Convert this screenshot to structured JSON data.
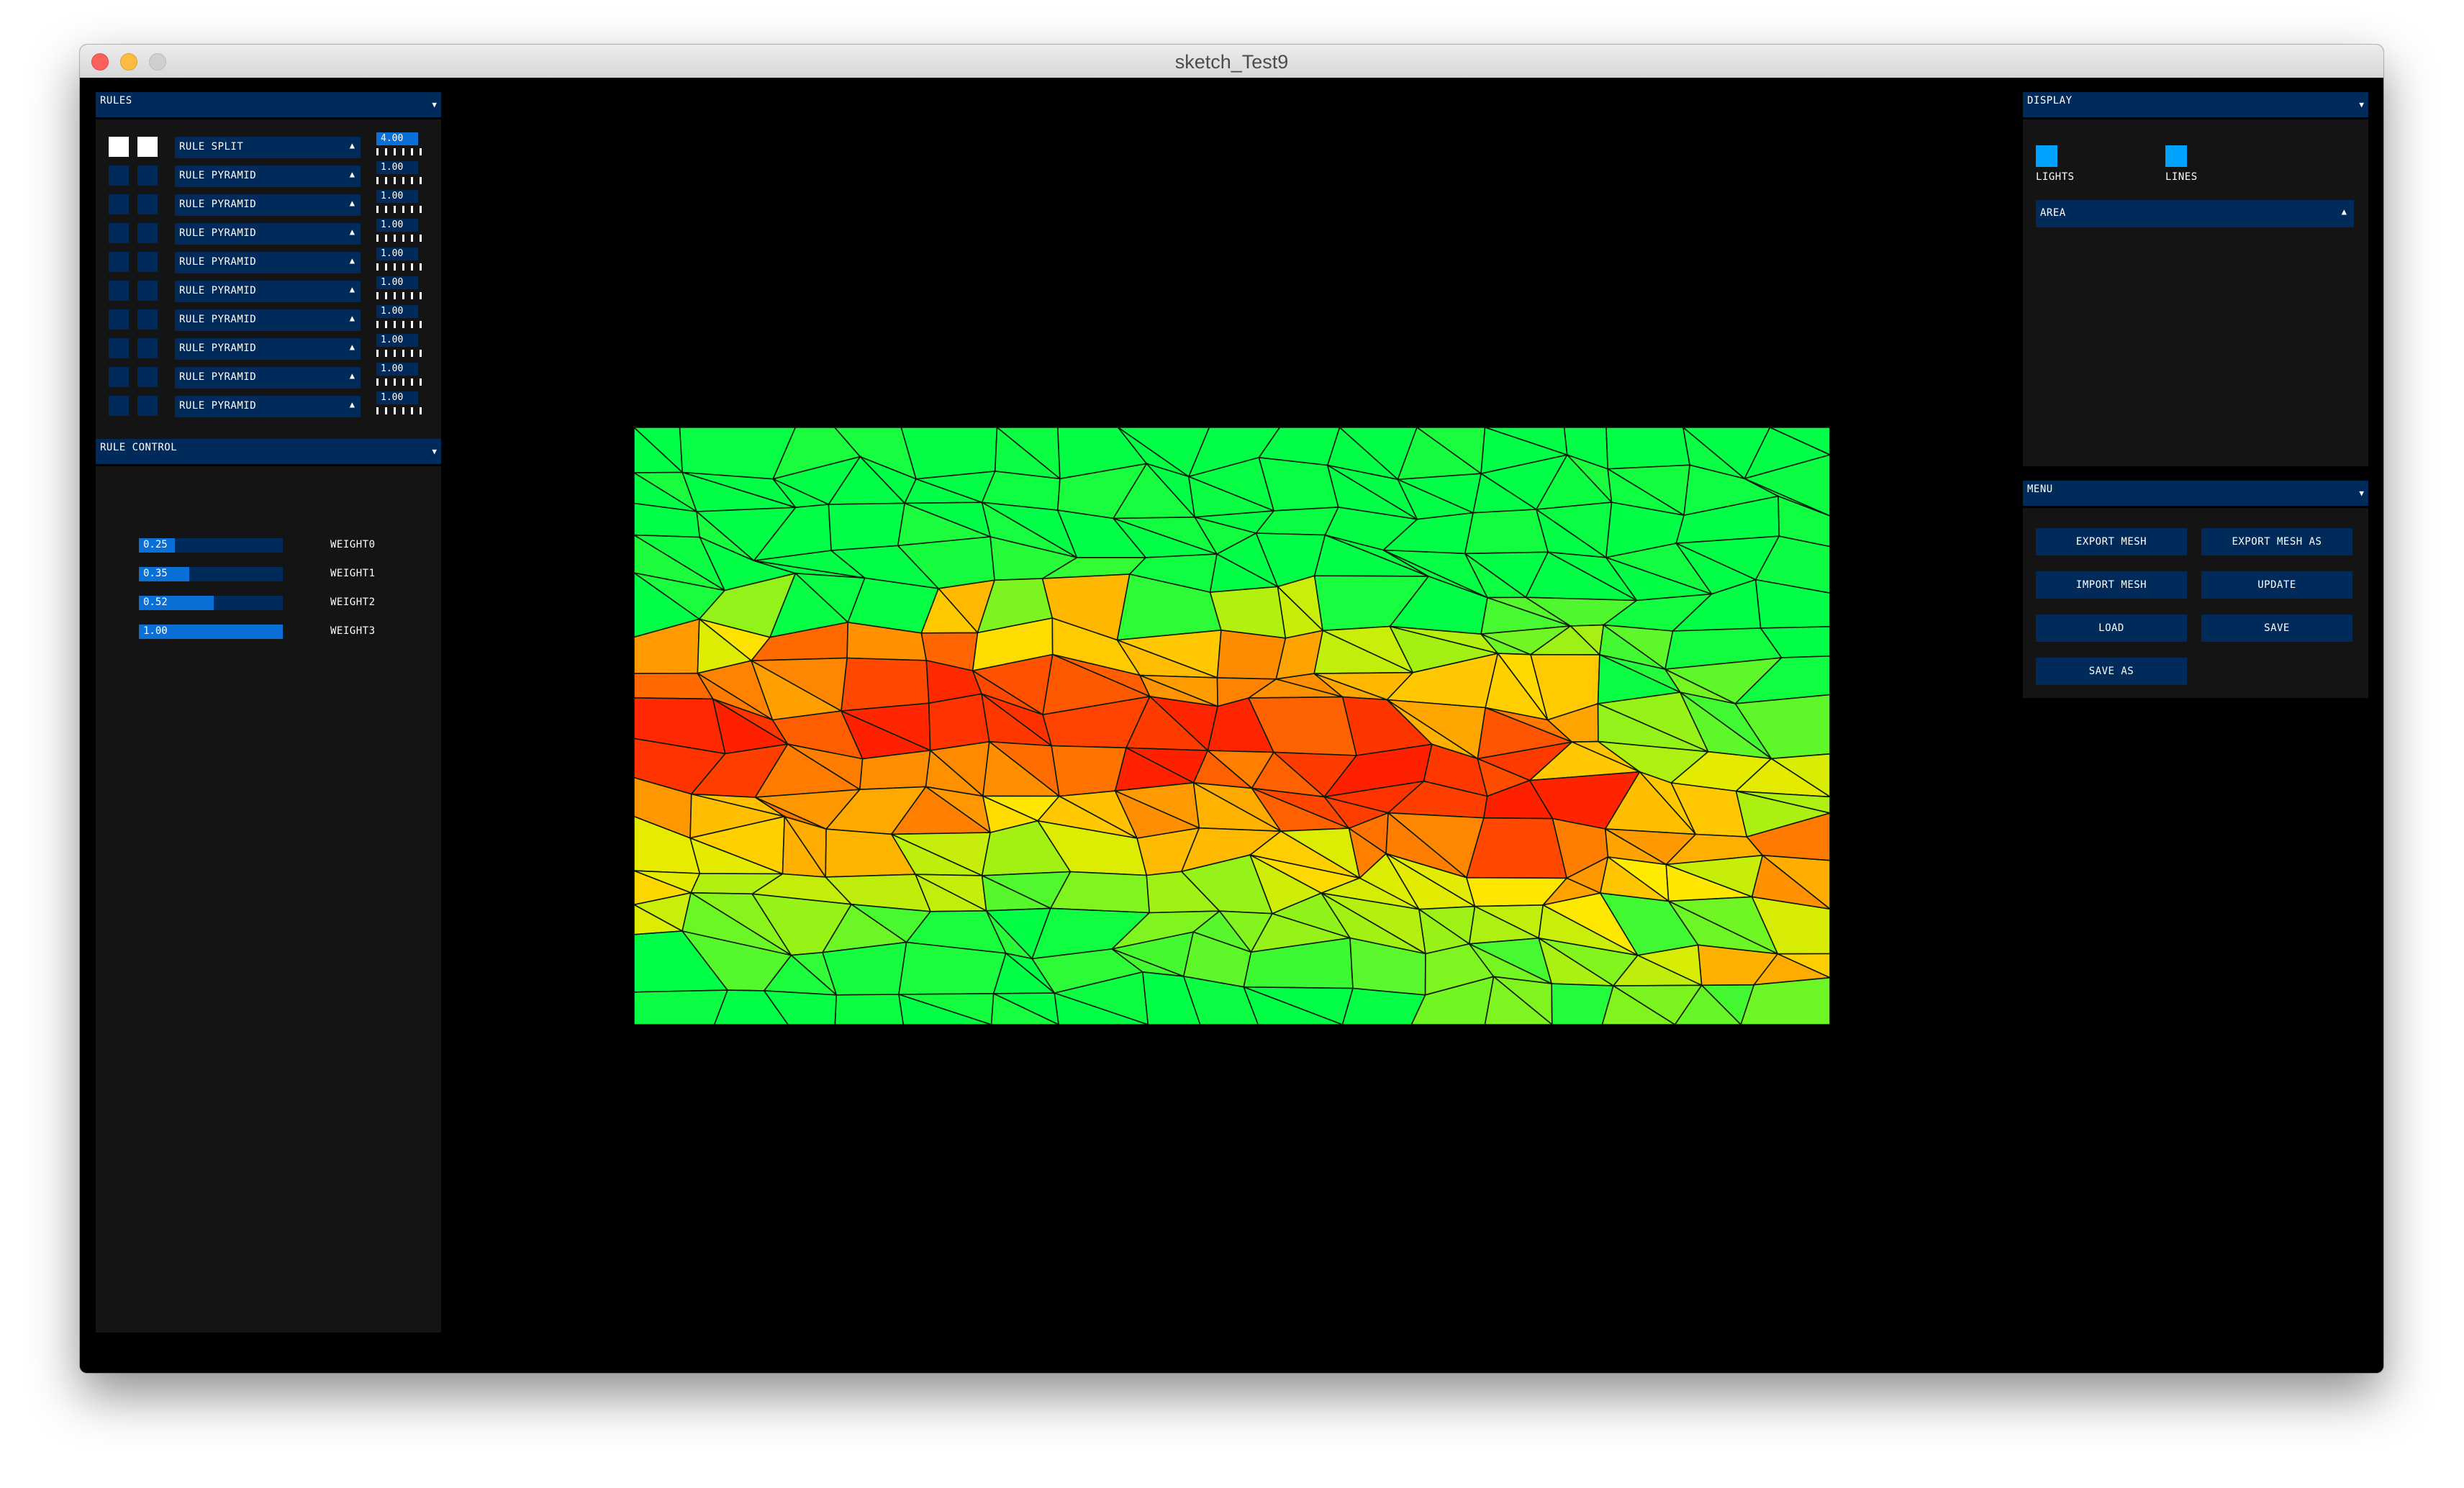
{
  "window": {
    "title": "sketch_Test9"
  },
  "rules_panel": {
    "title": "RULES",
    "rules": [
      {
        "label": "RULE SPLIT",
        "value": "4.00",
        "enabled_a": true,
        "enabled_b": true,
        "active": true
      },
      {
        "label": "RULE PYRAMID",
        "value": "1.00",
        "enabled_a": false,
        "enabled_b": false,
        "active": false
      },
      {
        "label": "RULE PYRAMID",
        "value": "1.00",
        "enabled_a": false,
        "enabled_b": false,
        "active": false
      },
      {
        "label": "RULE PYRAMID",
        "value": "1.00",
        "enabled_a": false,
        "enabled_b": false,
        "active": false
      },
      {
        "label": "RULE PYRAMID",
        "value": "1.00",
        "enabled_a": false,
        "enabled_b": false,
        "active": false
      },
      {
        "label": "RULE PYRAMID",
        "value": "1.00",
        "enabled_a": false,
        "enabled_b": false,
        "active": false
      },
      {
        "label": "RULE PYRAMID",
        "value": "1.00",
        "enabled_a": false,
        "enabled_b": false,
        "active": false
      },
      {
        "label": "RULE PYRAMID",
        "value": "1.00",
        "enabled_a": false,
        "enabled_b": false,
        "active": false
      },
      {
        "label": "RULE PYRAMID",
        "value": "1.00",
        "enabled_a": false,
        "enabled_b": false,
        "active": false
      },
      {
        "label": "RULE PYRAMID",
        "value": "1.00",
        "enabled_a": false,
        "enabled_b": false,
        "active": false
      }
    ]
  },
  "rule_control": {
    "title": "RULE CONTROL",
    "sliders": [
      {
        "name": "WEIGHT0",
        "value": "0.25",
        "fraction": 0.25
      },
      {
        "name": "WEIGHT1",
        "value": "0.35",
        "fraction": 0.35
      },
      {
        "name": "WEIGHT2",
        "value": "0.52",
        "fraction": 0.52
      },
      {
        "name": "WEIGHT3",
        "value": "1.00",
        "fraction": 1.0
      }
    ]
  },
  "display": {
    "title": "DISPLAY",
    "lights_label": "LIGHTS",
    "lines_label": "LINES",
    "lights_on": true,
    "lines_on": true,
    "mode_selected": "AREA"
  },
  "menu": {
    "title": "MENU",
    "export_mesh": "EXPORT MESH",
    "export_mesh_as": "EXPORT MESH AS",
    "import_mesh": "IMPORT MESH",
    "update": "UPDATE",
    "load": "LOAD",
    "save": "SAVE",
    "save_as": "SAVE AS"
  },
  "colors": {
    "panel_bg": "#141414",
    "control_bg": "#002a5a",
    "control_active": "#0a6fd6",
    "toggle_on": "#00a3ff",
    "gradient_low": "#ff2000",
    "gradient_mid": "#ffe000",
    "gradient_high": "#00ff60"
  }
}
